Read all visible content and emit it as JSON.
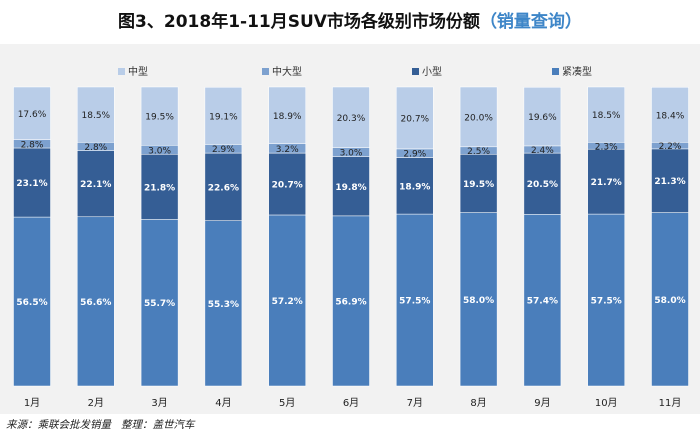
{
  "header": {
    "title": "图3、2018年1-11月SUV市场各级别市场份额",
    "subtitle": "（销量查询）"
  },
  "footer": {
    "source": "来源：乘联会批发销量",
    "editor": "整理：盖世汽车"
  },
  "chart_data": {
    "type": "bar",
    "stacked": true,
    "categories": [
      "1月",
      "2月",
      "3月",
      "4月",
      "5月",
      "6月",
      "7月",
      "8月",
      "9月",
      "10月",
      "11月"
    ],
    "series": [
      {
        "name": "紧凑型",
        "color": "#4a7ebb",
        "values": [
          56.5,
          56.6,
          55.7,
          55.3,
          57.2,
          56.9,
          57.5,
          58.0,
          57.4,
          57.5,
          58.0
        ],
        "labels": [
          "56.5%",
          "56.6%",
          "55.7%",
          "55.3%",
          "57.2%",
          "56.9%",
          "57.5%",
          "58.0%",
          "57.4%",
          "57.5%",
          "58.0%"
        ]
      },
      {
        "name": "小型",
        "color": "#355e95",
        "values": [
          23.1,
          22.1,
          21.8,
          22.6,
          20.7,
          19.8,
          18.9,
          19.5,
          20.5,
          21.7,
          21.3
        ],
        "labels": [
          "23.1%",
          "22.1%",
          "21.8%",
          "22.6%",
          "20.7%",
          "19.8%",
          "18.9%",
          "19.5%",
          "20.5%",
          "21.7%",
          "21.3%"
        ]
      },
      {
        "name": "中大型",
        "color": "#7da1cf",
        "values": [
          2.8,
          2.8,
          3.0,
          2.9,
          3.2,
          3.0,
          2.9,
          2.5,
          2.4,
          2.3,
          2.2
        ],
        "labels": [
          "2.8%",
          "2.8%",
          "3.0%",
          "2.9%",
          "3.2%",
          "3.0%",
          "2.9%",
          "2.5%",
          "2.4%",
          "2.3%",
          "2.2%"
        ]
      },
      {
        "name": "中型",
        "color": "#b9cde8",
        "values": [
          17.6,
          18.5,
          19.5,
          19.1,
          18.9,
          20.3,
          20.7,
          20.0,
          19.6,
          18.5,
          18.4
        ],
        "labels": [
          "17.6%",
          "18.5%",
          "19.5%",
          "19.1%",
          "18.9%",
          "20.3%",
          "20.7%",
          "20.0%",
          "19.6%",
          "18.5%",
          "18.4%"
        ]
      }
    ],
    "legend": [
      "中型",
      "中大型",
      "小型",
      "紧凑型"
    ],
    "ylim": [
      0,
      100
    ],
    "legend_position": "top"
  }
}
